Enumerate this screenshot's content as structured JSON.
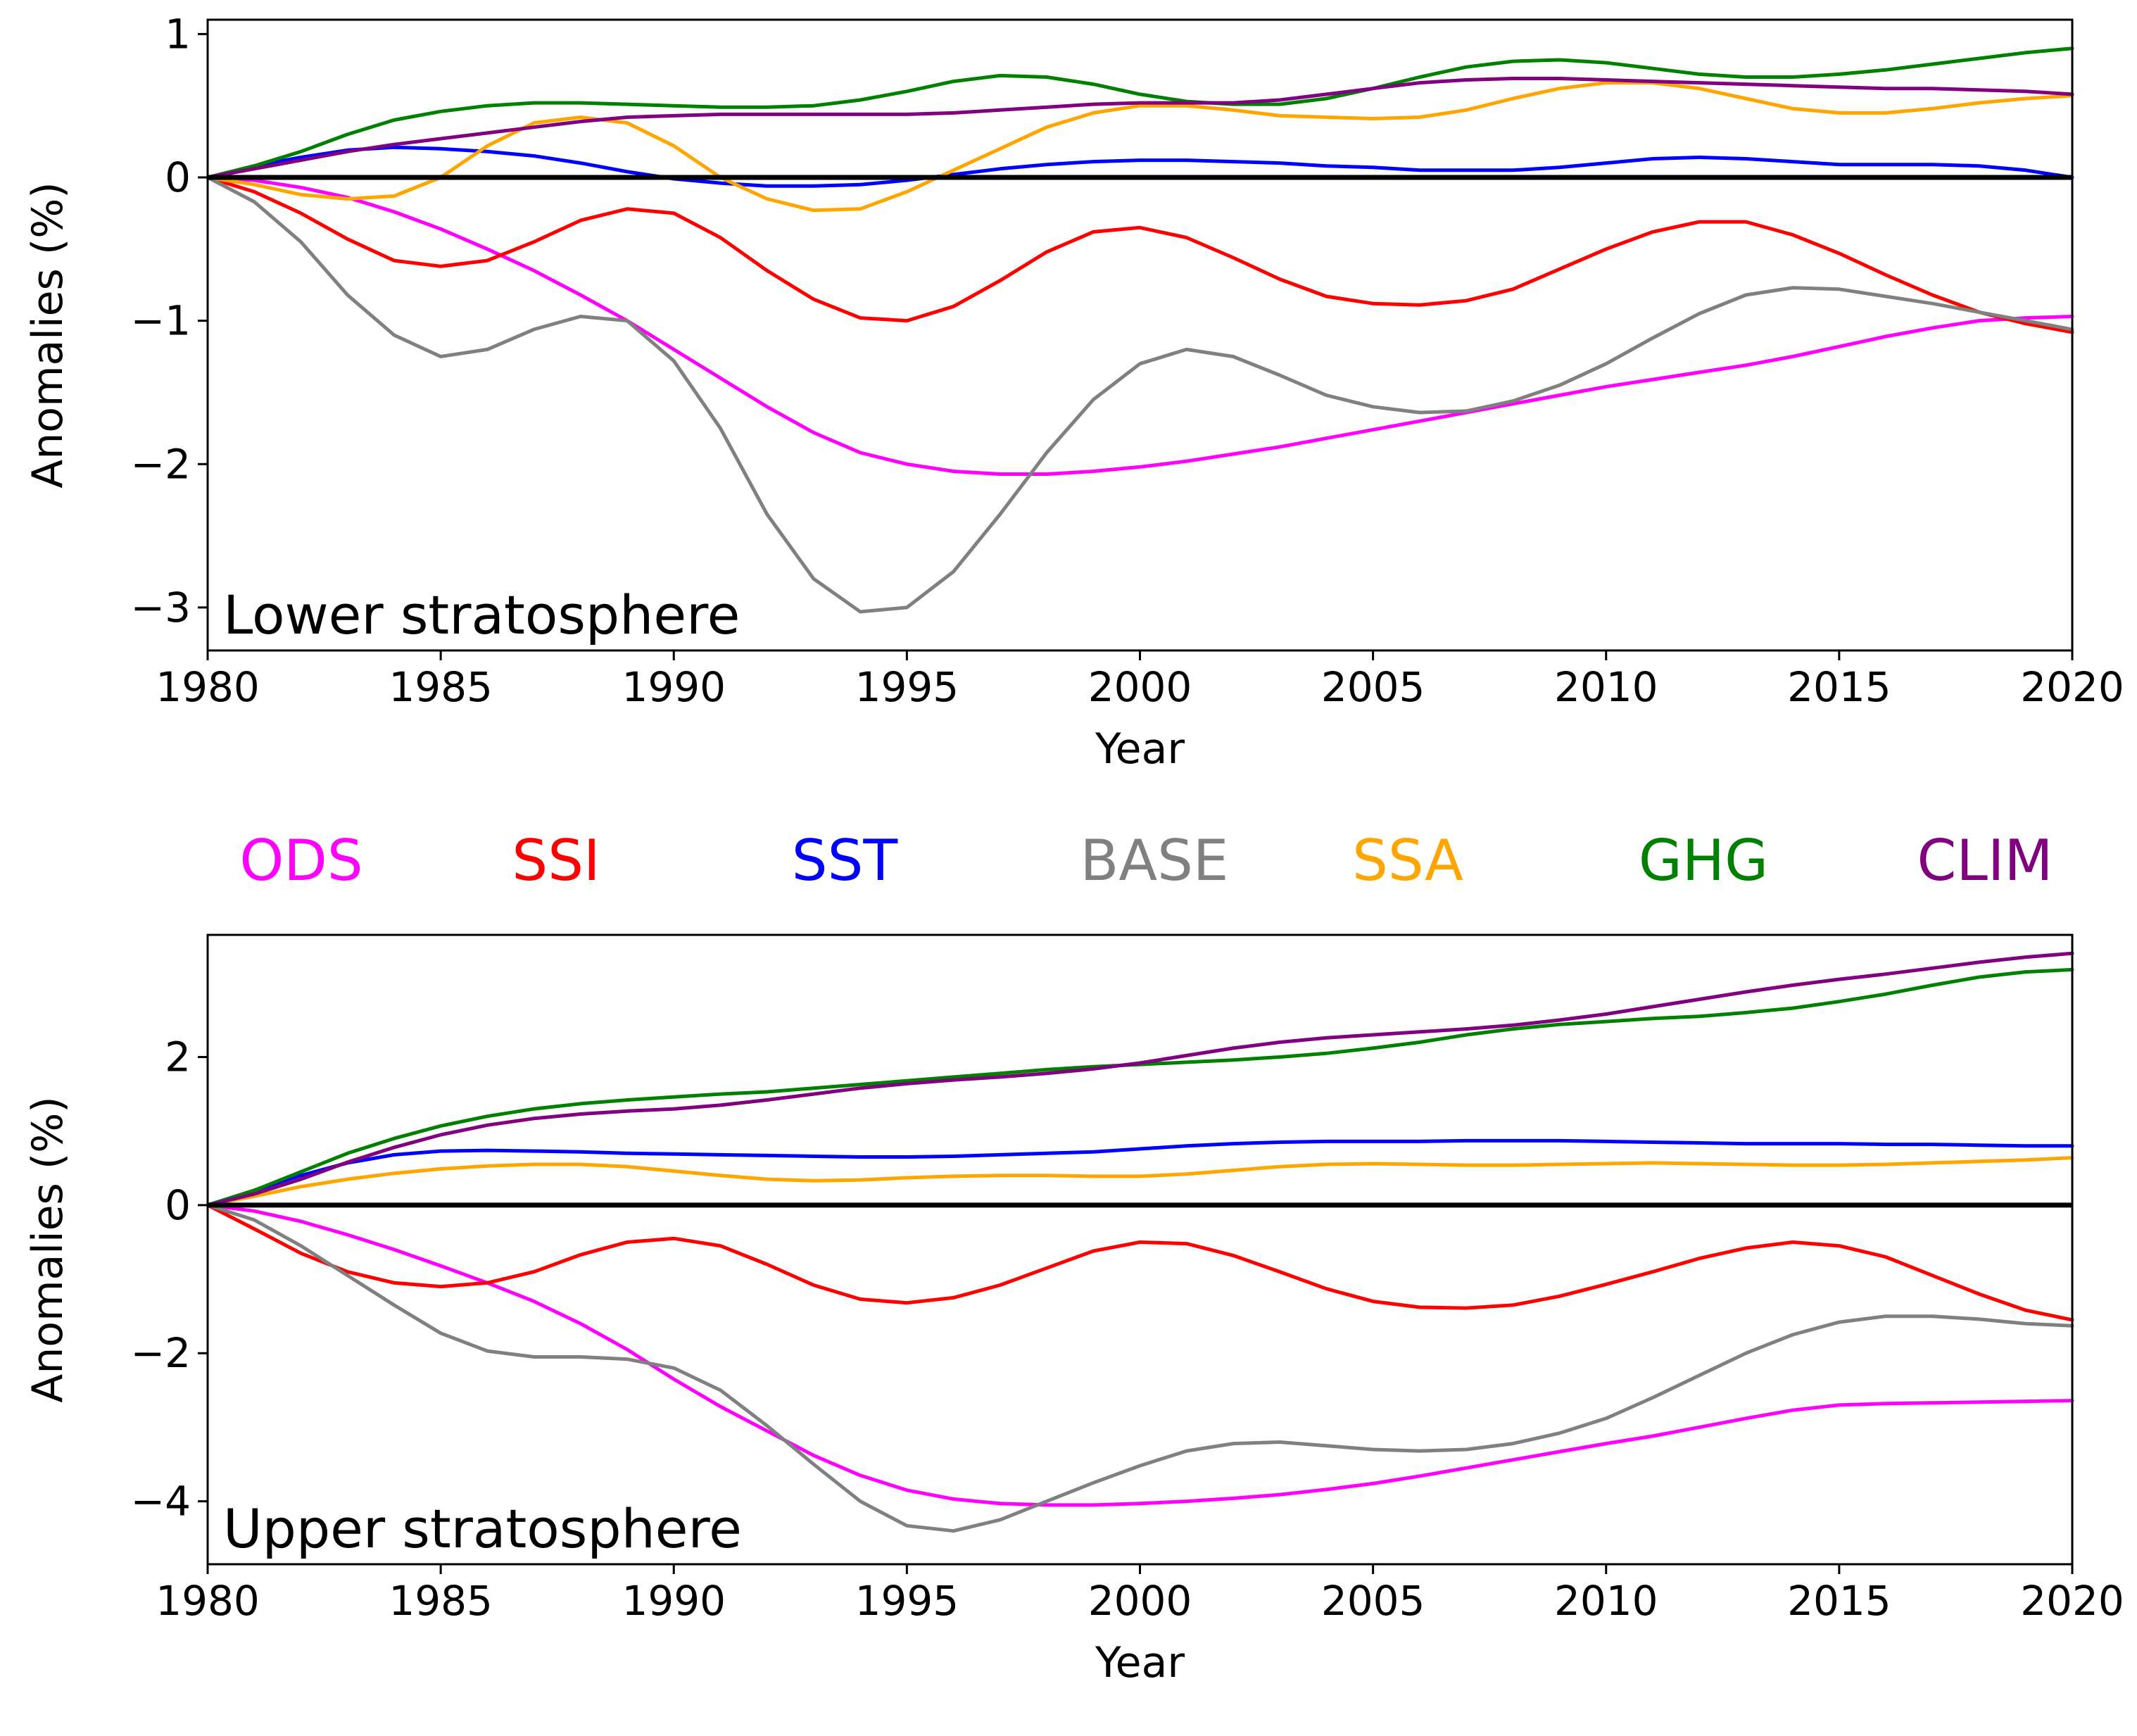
{
  "colors": {
    "ODS": "#ff00ff",
    "SSI": "#ff0000",
    "SST": "#0000ff",
    "BASE": "#808080",
    "SSA": "#ffa500",
    "GHG": "#008000",
    "CLIM": "#800080"
  },
  "legend": [
    {
      "name": "ODS",
      "color": "#ff00ff"
    },
    {
      "name": "SSI",
      "color": "#ff0000"
    },
    {
      "name": "SST",
      "color": "#0000ff"
    },
    {
      "name": "BASE",
      "color": "#808080"
    },
    {
      "name": "SSA",
      "color": "#ffa500"
    },
    {
      "name": "GHG",
      "color": "#008000"
    },
    {
      "name": "CLIM",
      "color": "#800080"
    }
  ],
  "chart_data": [
    {
      "type": "line",
      "panel_label": "Lower stratosphere",
      "xlabel": "Year",
      "ylabel": "Anomalies (%)",
      "xlim": [
        1980,
        2020
      ],
      "ylim": [
        -3.3,
        1.1
      ],
      "xticks": [
        1980,
        1985,
        1990,
        1995,
        2000,
        2005,
        2010,
        2015,
        2020
      ],
      "yticks": [
        1,
        0,
        -1,
        -2,
        -3
      ],
      "ytick_labels": [
        "1",
        "0",
        "−1",
        "−2",
        "−3"
      ],
      "zero_line": true,
      "x": [
        1980,
        1981,
        1982,
        1983,
        1984,
        1985,
        1986,
        1987,
        1988,
        1989,
        1990,
        1991,
        1992,
        1993,
        1994,
        1995,
        1996,
        1997,
        1998,
        1999,
        2000,
        2001,
        2002,
        2003,
        2004,
        2005,
        2006,
        2007,
        2008,
        2009,
        2010,
        2011,
        2012,
        2013,
        2014,
        2015,
        2016,
        2017,
        2018,
        2019,
        2020
      ],
      "series": [
        {
          "name": "ODS",
          "values": [
            0,
            -0.02,
            -0.07,
            -0.14,
            -0.24,
            -0.36,
            -0.5,
            -0.65,
            -0.82,
            -1.0,
            -1.2,
            -1.4,
            -1.6,
            -1.78,
            -1.92,
            -2.0,
            -2.05,
            -2.07,
            -2.07,
            -2.05,
            -2.02,
            -1.98,
            -1.93,
            -1.88,
            -1.82,
            -1.76,
            -1.7,
            -1.64,
            -1.58,
            -1.52,
            -1.46,
            -1.41,
            -1.36,
            -1.31,
            -1.25,
            -1.18,
            -1.11,
            -1.05,
            -1.0,
            -0.98,
            -0.97
          ]
        },
        {
          "name": "SSI",
          "values": [
            0,
            -0.1,
            -0.25,
            -0.43,
            -0.58,
            -0.62,
            -0.58,
            -0.45,
            -0.3,
            -0.22,
            -0.25,
            -0.42,
            -0.65,
            -0.85,
            -0.98,
            -1.0,
            -0.9,
            -0.72,
            -0.52,
            -0.38,
            -0.35,
            -0.42,
            -0.56,
            -0.71,
            -0.83,
            -0.88,
            -0.89,
            -0.86,
            -0.78,
            -0.64,
            -0.5,
            -0.38,
            -0.31,
            -0.31,
            -0.4,
            -0.53,
            -0.68,
            -0.82,
            -0.94,
            -1.02,
            -1.08
          ]
        },
        {
          "name": "SST",
          "values": [
            0,
            0.08,
            0.14,
            0.19,
            0.21,
            0.2,
            0.18,
            0.15,
            0.1,
            0.04,
            -0.01,
            -0.04,
            -0.06,
            -0.06,
            -0.05,
            -0.02,
            0.02,
            0.06,
            0.09,
            0.11,
            0.12,
            0.12,
            0.11,
            0.1,
            0.08,
            0.07,
            0.05,
            0.05,
            0.05,
            0.07,
            0.1,
            0.13,
            0.14,
            0.13,
            0.11,
            0.09,
            0.09,
            0.09,
            0.08,
            0.05,
            0.0
          ]
        },
        {
          "name": "BASE",
          "values": [
            0,
            -0.17,
            -0.45,
            -0.82,
            -1.1,
            -1.25,
            -1.2,
            -1.06,
            -0.97,
            -1.0,
            -1.28,
            -1.75,
            -2.35,
            -2.8,
            -3.03,
            -3.0,
            -2.75,
            -2.35,
            -1.92,
            -1.55,
            -1.3,
            -1.2,
            -1.25,
            -1.38,
            -1.52,
            -1.6,
            -1.64,
            -1.63,
            -1.56,
            -1.45,
            -1.3,
            -1.12,
            -0.95,
            -0.82,
            -0.77,
            -0.78,
            -0.83,
            -0.88,
            -0.94,
            -1.0,
            -1.06
          ]
        },
        {
          "name": "SSA",
          "values": [
            0,
            -0.05,
            -0.12,
            -0.15,
            -0.13,
            0.0,
            0.22,
            0.38,
            0.42,
            0.38,
            0.22,
            0.0,
            -0.15,
            -0.23,
            -0.22,
            -0.1,
            0.05,
            0.2,
            0.35,
            0.45,
            0.5,
            0.5,
            0.47,
            0.43,
            0.42,
            0.41,
            0.42,
            0.47,
            0.55,
            0.62,
            0.66,
            0.66,
            0.62,
            0.55,
            0.48,
            0.45,
            0.45,
            0.48,
            0.52,
            0.55,
            0.57
          ]
        },
        {
          "name": "GHG",
          "values": [
            0,
            0.08,
            0.18,
            0.3,
            0.4,
            0.46,
            0.5,
            0.52,
            0.52,
            0.51,
            0.5,
            0.49,
            0.49,
            0.5,
            0.54,
            0.6,
            0.67,
            0.71,
            0.7,
            0.65,
            0.58,
            0.53,
            0.51,
            0.51,
            0.55,
            0.62,
            0.7,
            0.77,
            0.81,
            0.82,
            0.8,
            0.76,
            0.72,
            0.7,
            0.7,
            0.72,
            0.75,
            0.79,
            0.83,
            0.87,
            0.9
          ]
        },
        {
          "name": "CLIM",
          "values": [
            0,
            0.06,
            0.12,
            0.18,
            0.23,
            0.27,
            0.31,
            0.35,
            0.39,
            0.42,
            0.43,
            0.44,
            0.44,
            0.44,
            0.44,
            0.44,
            0.45,
            0.47,
            0.49,
            0.51,
            0.52,
            0.52,
            0.52,
            0.54,
            0.58,
            0.62,
            0.66,
            0.68,
            0.69,
            0.69,
            0.68,
            0.67,
            0.66,
            0.65,
            0.64,
            0.63,
            0.62,
            0.62,
            0.61,
            0.6,
            0.58
          ]
        }
      ]
    },
    {
      "type": "line",
      "panel_label": "Upper stratosphere",
      "xlabel": "Year",
      "ylabel": "Anomalies (%)",
      "xlim": [
        1980,
        2020
      ],
      "ylim": [
        -4.85,
        3.65
      ],
      "xticks": [
        1980,
        1985,
        1990,
        1995,
        2000,
        2005,
        2010,
        2015,
        2020
      ],
      "yticks": [
        2,
        0,
        -2,
        -4
      ],
      "ytick_labels": [
        "2",
        "0",
        "−2",
        "−4"
      ],
      "zero_line": true,
      "x": [
        1980,
        1981,
        1982,
        1983,
        1984,
        1985,
        1986,
        1987,
        1988,
        1989,
        1990,
        1991,
        1992,
        1993,
        1994,
        1995,
        1996,
        1997,
        1998,
        1999,
        2000,
        2001,
        2002,
        2003,
        2004,
        2005,
        2006,
        2007,
        2008,
        2009,
        2010,
        2011,
        2012,
        2013,
        2014,
        2015,
        2016,
        2017,
        2018,
        2019,
        2020
      ],
      "series": [
        {
          "name": "ODS",
          "values": [
            0,
            -0.08,
            -0.22,
            -0.4,
            -0.6,
            -0.82,
            -1.05,
            -1.3,
            -1.6,
            -1.95,
            -2.35,
            -2.72,
            -3.05,
            -3.38,
            -3.65,
            -3.85,
            -3.97,
            -4.03,
            -4.05,
            -4.05,
            -4.03,
            -4.0,
            -3.96,
            -3.91,
            -3.84,
            -3.76,
            -3.66,
            -3.55,
            -3.44,
            -3.33,
            -3.22,
            -3.12,
            -3.0,
            -2.88,
            -2.77,
            -2.7,
            -2.68,
            -2.67,
            -2.66,
            -2.65,
            -2.64
          ]
        },
        {
          "name": "SSI",
          "values": [
            0,
            -0.32,
            -0.65,
            -0.9,
            -1.05,
            -1.1,
            -1.05,
            -0.9,
            -0.67,
            -0.5,
            -0.45,
            -0.55,
            -0.8,
            -1.08,
            -1.27,
            -1.32,
            -1.25,
            -1.08,
            -0.85,
            -0.62,
            -0.5,
            -0.52,
            -0.68,
            -0.9,
            -1.13,
            -1.3,
            -1.38,
            -1.39,
            -1.35,
            -1.23,
            -1.07,
            -0.9,
            -0.72,
            -0.58,
            -0.5,
            -0.55,
            -0.7,
            -0.95,
            -1.2,
            -1.42,
            -1.55
          ]
        },
        {
          "name": "SST",
          "values": [
            0,
            0.2,
            0.4,
            0.57,
            0.68,
            0.73,
            0.74,
            0.73,
            0.72,
            0.7,
            0.69,
            0.68,
            0.67,
            0.66,
            0.65,
            0.65,
            0.66,
            0.68,
            0.7,
            0.72,
            0.76,
            0.8,
            0.83,
            0.85,
            0.86,
            0.86,
            0.86,
            0.87,
            0.87,
            0.87,
            0.86,
            0.85,
            0.84,
            0.83,
            0.83,
            0.83,
            0.82,
            0.82,
            0.81,
            0.8,
            0.8
          ]
        },
        {
          "name": "BASE",
          "values": [
            0,
            -0.2,
            -0.55,
            -0.95,
            -1.35,
            -1.73,
            -1.97,
            -2.05,
            -2.05,
            -2.08,
            -2.2,
            -2.5,
            -2.98,
            -3.5,
            -4.0,
            -4.33,
            -4.4,
            -4.25,
            -4.0,
            -3.75,
            -3.52,
            -3.32,
            -3.22,
            -3.2,
            -3.25,
            -3.3,
            -3.32,
            -3.3,
            -3.22,
            -3.08,
            -2.88,
            -2.6,
            -2.3,
            -2.0,
            -1.75,
            -1.58,
            -1.5,
            -1.5,
            -1.54,
            -1.6,
            -1.63
          ]
        },
        {
          "name": "SSA",
          "values": [
            0,
            0.12,
            0.25,
            0.35,
            0.43,
            0.49,
            0.53,
            0.55,
            0.55,
            0.52,
            0.46,
            0.4,
            0.35,
            0.33,
            0.34,
            0.37,
            0.39,
            0.4,
            0.4,
            0.39,
            0.39,
            0.42,
            0.47,
            0.52,
            0.55,
            0.56,
            0.55,
            0.54,
            0.54,
            0.55,
            0.56,
            0.57,
            0.56,
            0.55,
            0.54,
            0.54,
            0.55,
            0.57,
            0.59,
            0.61,
            0.64
          ]
        },
        {
          "name": "GHG",
          "values": [
            0,
            0.2,
            0.45,
            0.7,
            0.9,
            1.07,
            1.2,
            1.3,
            1.37,
            1.42,
            1.46,
            1.5,
            1.53,
            1.58,
            1.63,
            1.68,
            1.73,
            1.78,
            1.83,
            1.87,
            1.9,
            1.93,
            1.96,
            2.0,
            2.05,
            2.12,
            2.2,
            2.3,
            2.38,
            2.44,
            2.48,
            2.52,
            2.55,
            2.6,
            2.66,
            2.75,
            2.85,
            2.97,
            3.08,
            3.15,
            3.18
          ]
        },
        {
          "name": "CLIM",
          "values": [
            0,
            0.15,
            0.35,
            0.58,
            0.78,
            0.95,
            1.08,
            1.17,
            1.23,
            1.27,
            1.3,
            1.35,
            1.42,
            1.5,
            1.58,
            1.64,
            1.69,
            1.73,
            1.78,
            1.84,
            1.92,
            2.02,
            2.12,
            2.2,
            2.26,
            2.3,
            2.34,
            2.38,
            2.43,
            2.5,
            2.58,
            2.68,
            2.78,
            2.88,
            2.97,
            3.05,
            3.12,
            3.2,
            3.28,
            3.35,
            3.4
          ]
        }
      ]
    }
  ]
}
